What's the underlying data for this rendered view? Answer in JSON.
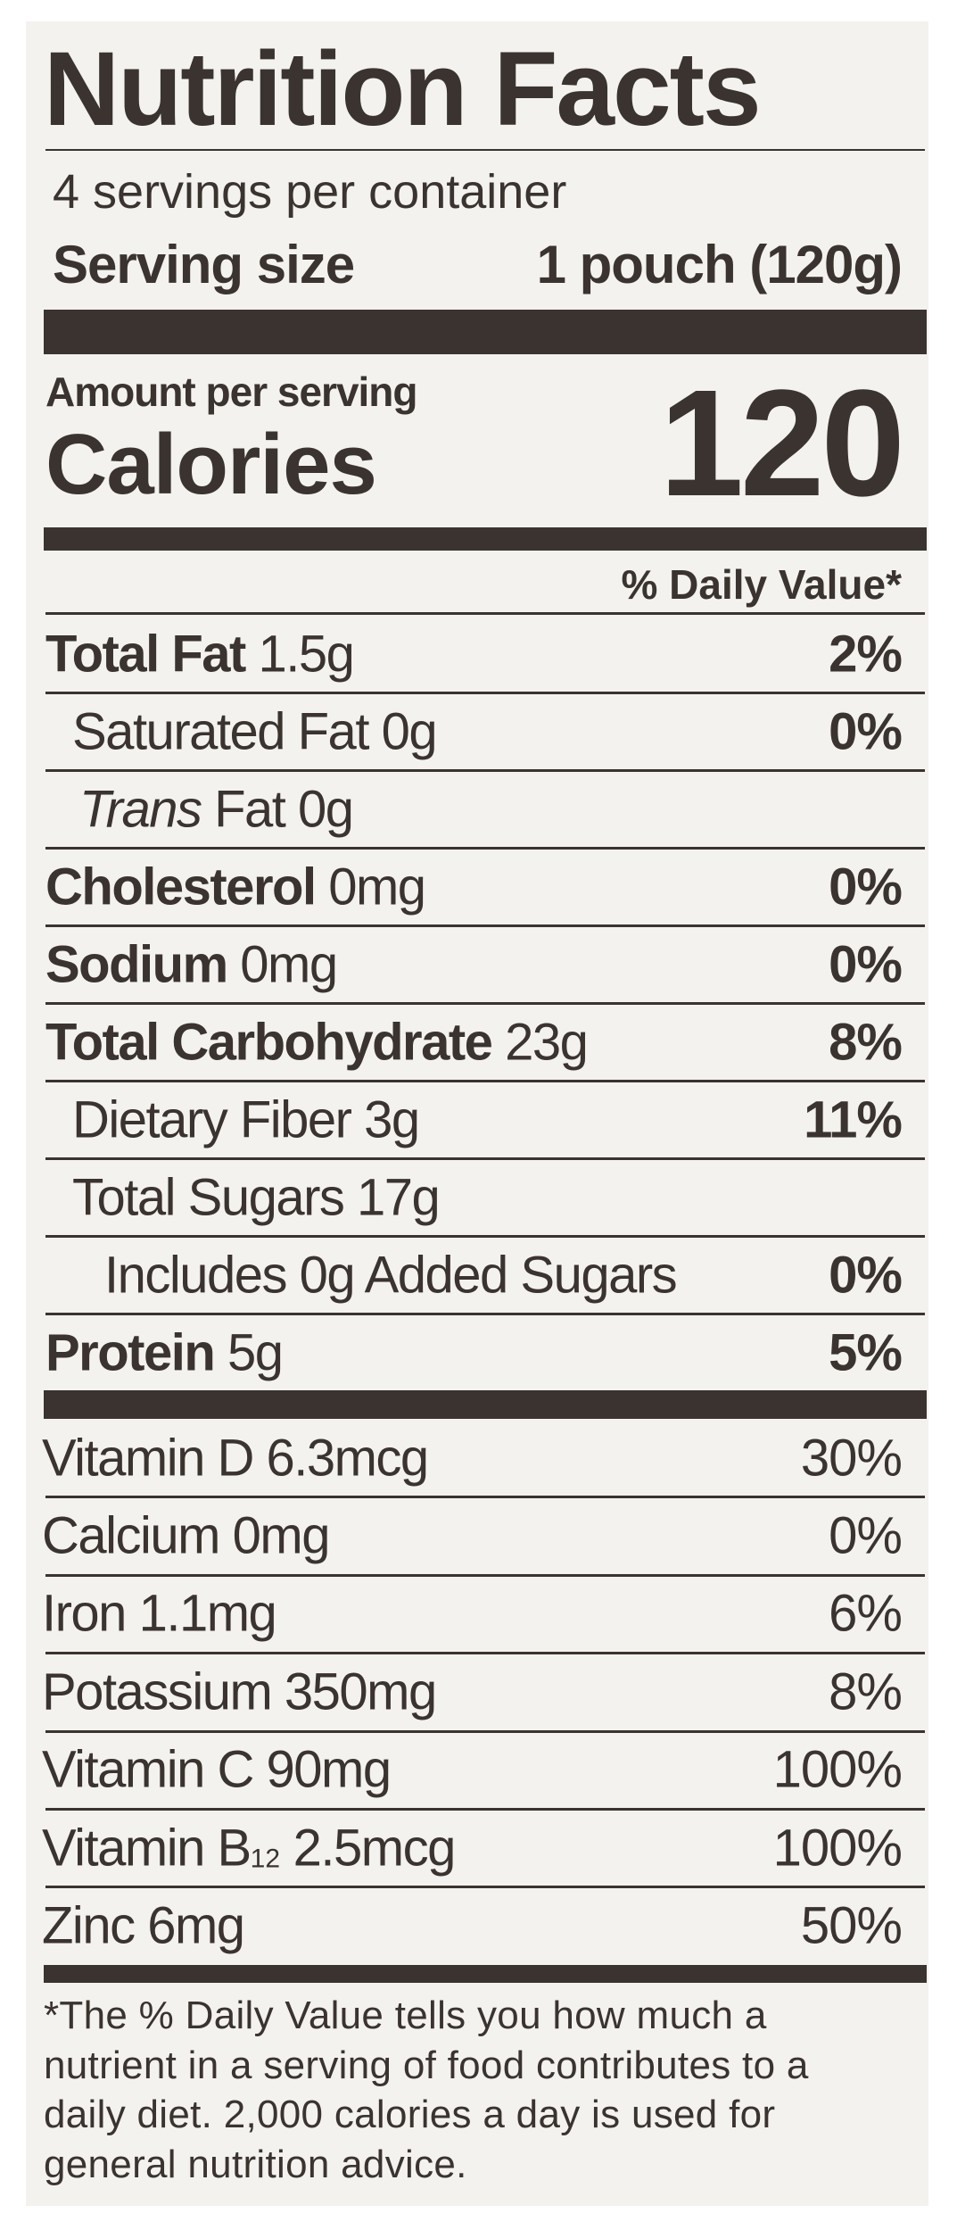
{
  "title": "Nutrition Facts",
  "servings": "4 servings per container",
  "serving_size": {
    "label": "Serving size",
    "value": "1 pouch (120g)"
  },
  "amount_per_serving": "Amount per serving",
  "calories": {
    "label": "Calories",
    "value": "120"
  },
  "daily_value_header": "% Daily Value*",
  "nutrients": [
    {
      "name": "Total Fat",
      "amount": "1.5g",
      "dv": "2%"
    },
    {
      "name": "Saturated Fat",
      "amount": "0g",
      "dv": "0%"
    },
    {
      "name_italic": "Trans",
      "name": "Fat",
      "amount": "0g"
    },
    {
      "name": "Cholesterol",
      "amount": "0mg",
      "dv": "0%"
    },
    {
      "name": "Sodium",
      "amount": "0mg",
      "dv": "0%"
    },
    {
      "name": "Total Carbohydrate",
      "amount": "23g",
      "dv": "8%"
    },
    {
      "name": "Dietary Fiber",
      "amount": "3g",
      "dv": "11%"
    },
    {
      "name": "Total Sugars",
      "amount": "17g"
    },
    {
      "name": "Includes 0g Added Sugars",
      "dv": "0%"
    },
    {
      "name": "Protein",
      "amount": "5g",
      "dv": "5%"
    }
  ],
  "vitamins": [
    {
      "name": "Vitamin D",
      "amount": "6.3mcg",
      "dv": "30%"
    },
    {
      "name": "Calcium",
      "amount": "0mg",
      "dv": "0%"
    },
    {
      "name": "Iron",
      "amount": "1.1mg",
      "dv": "6%"
    },
    {
      "name": "Potassium",
      "amount": "350mg",
      "dv": "8%"
    },
    {
      "name": "Vitamin C",
      "amount": "90mg",
      "dv": "100%"
    },
    {
      "name": "Vitamin B",
      "subscript": "12",
      "amount": "2.5mcg",
      "dv": "100%"
    },
    {
      "name": "Zinc",
      "amount": "6mg",
      "dv": "50%"
    }
  ],
  "footnote": [
    "*The % Daily Value tells you how much a",
    "nutrient in a serving of food contributes to a",
    "daily diet. 2,000 calories a day is used for",
    "general nutrition advice."
  ]
}
